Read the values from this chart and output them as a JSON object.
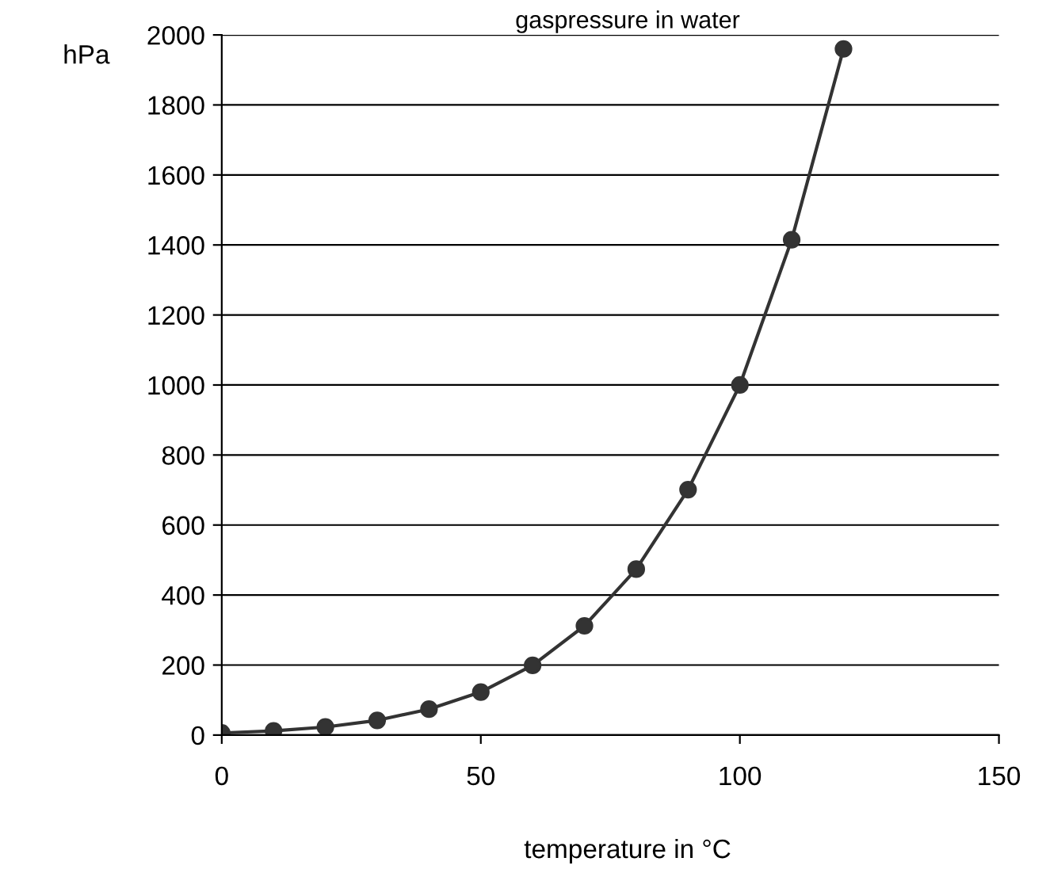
{
  "chart_data": {
    "type": "line",
    "title": "gaspressure in water",
    "xlabel": "temperature in °C",
    "ylabel": "hPa",
    "x": [
      0,
      10,
      20,
      30,
      40,
      50,
      60,
      70,
      80,
      90,
      100,
      110,
      120
    ],
    "series": [
      {
        "color": "#333333",
        "values": [
          6,
          12,
          23,
          42,
          74,
          123,
          199,
          312,
          474,
          701,
          1000,
          1415,
          1960
        ]
      }
    ],
    "xlim": [
      0,
      150
    ],
    "xticks": [
      0,
      50,
      100,
      150
    ],
    "ylim": [
      0,
      2000
    ],
    "yticks": [
      0,
      200,
      400,
      600,
      800,
      1000,
      1200,
      1400,
      1600,
      1800,
      2000
    ],
    "grid": "y",
    "legend": false,
    "marker": "circle",
    "line_style": "solid"
  }
}
